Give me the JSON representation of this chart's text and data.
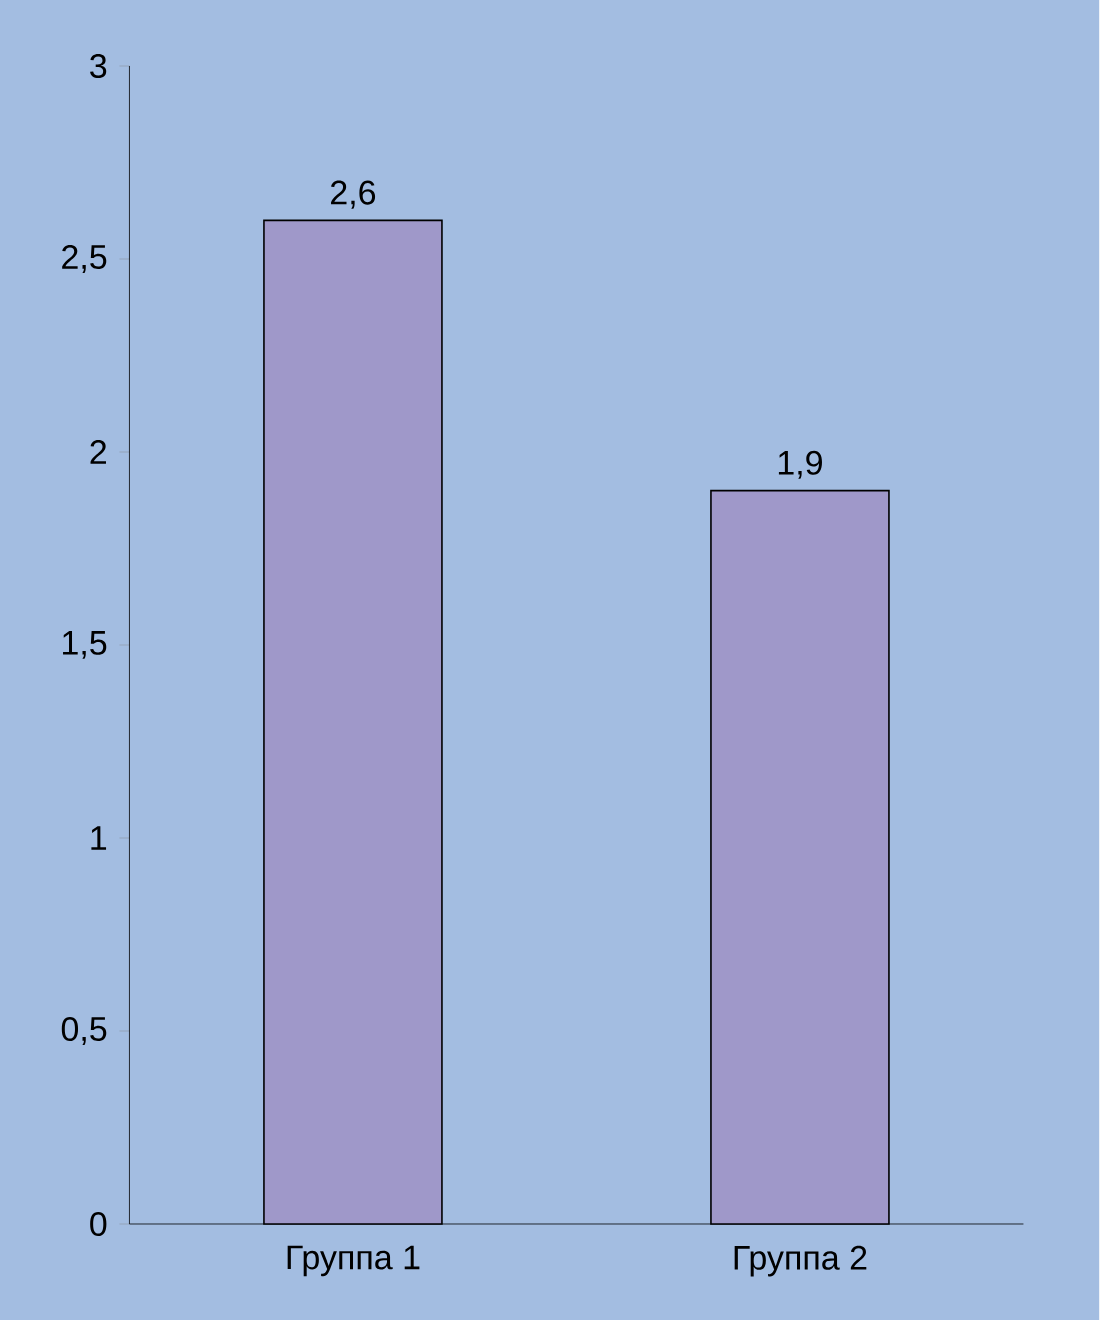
{
  "chart_data": {
    "type": "bar",
    "categories": [
      "Группа 1",
      "Группа 2"
    ],
    "values": [
      2.6,
      1.9
    ],
    "colors": [
      "#9f98c9",
      "#9f98c9"
    ],
    "value_labels": [
      "2,6",
      "1,9"
    ],
    "ylim": [
      0,
      3
    ],
    "yticks": [
      0,
      {
        "value": 0.5,
        "label": "0,5"
      },
      1,
      {
        "value": 1.5,
        "label": "1,5"
      },
      2,
      {
        "value": 2.5,
        "label": "2,5"
      },
      3
    ],
    "grid": false
  }
}
